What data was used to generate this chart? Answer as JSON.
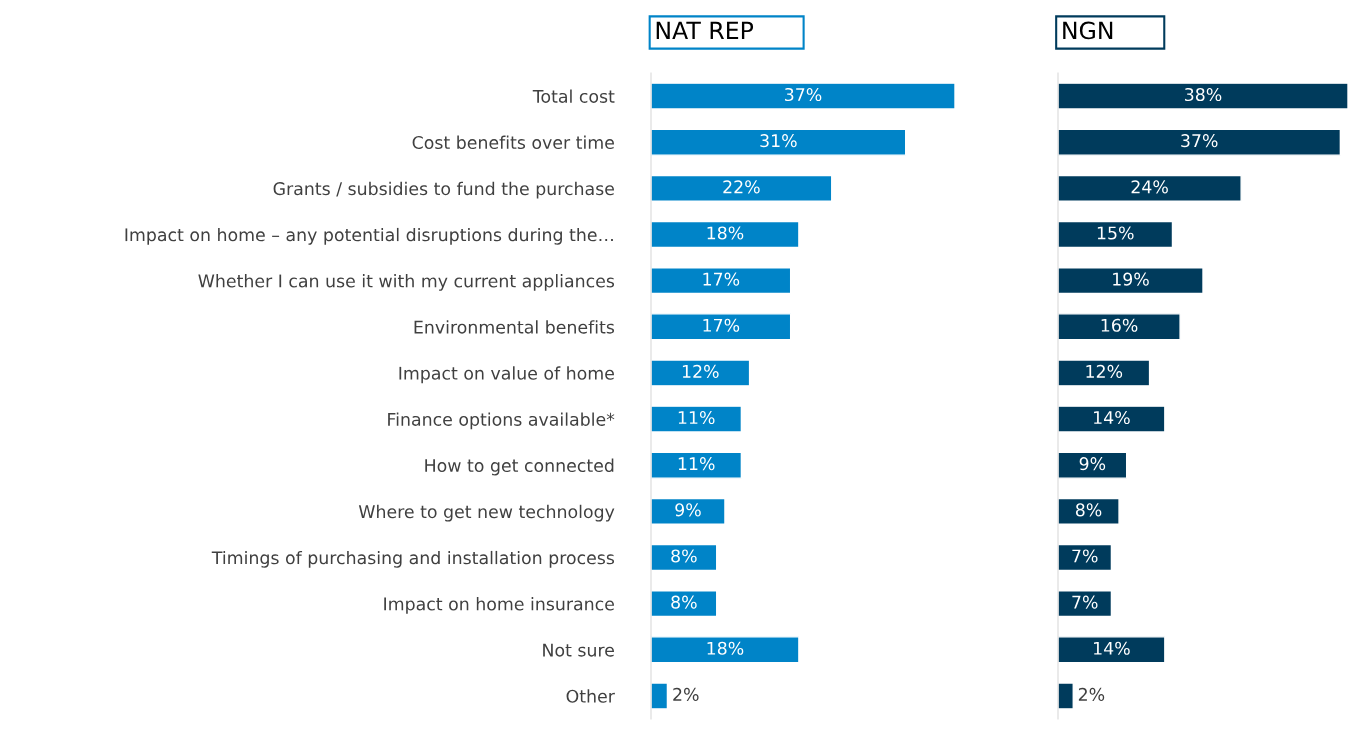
{
  "chart_data": [
    {
      "type": "bar",
      "orientation": "horizontal",
      "title": "NAT REP",
      "tick_labels": "y",
      "categories": [
        "Total cost",
        "Cost benefits over time",
        "Grants / subsidies to fund the purchase",
        "Impact on home – any potential disruptions during the…",
        "Whether I can use it with my current appliances",
        "Environmental benefits",
        "Impact on value of home",
        "Finance options available*",
        "How to get connected",
        "Where to get new technology",
        "Timings of purchasing and installation process",
        "Impact on home insurance",
        "Not sure",
        "Other"
      ],
      "series": [
        {
          "color": "#0084c8",
          "values": [
            37,
            31,
            22,
            18,
            17,
            17,
            12,
            11,
            11,
            9,
            8,
            8,
            18,
            2
          ],
          "value_labels": [
            "37%",
            "31%",
            "22%",
            "18%",
            "17%",
            "17%",
            "12%",
            "11%",
            "11%",
            "9%",
            "8%",
            "8%",
            "18%",
            "2%"
          ]
        }
      ]
    },
    {
      "type": "bar",
      "orientation": "horizontal",
      "title": "NGN",
      "categories": [
        null,
        null,
        null,
        null,
        null,
        null,
        null,
        null,
        null,
        null,
        null,
        null,
        null,
        null
      ],
      "series": [
        {
          "color": "#003b5c",
          "values": [
            38,
            37,
            24,
            15,
            19,
            16,
            12,
            14,
            9,
            8,
            7,
            7,
            14,
            2
          ],
          "value_labels": [
            "38%",
            "37%",
            "24%",
            "15%",
            "19%",
            "16%",
            "12%",
            "14%",
            "9%",
            "8%",
            "7%",
            "7%",
            "14%",
            "2%"
          ]
        }
      ]
    }
  ]
}
